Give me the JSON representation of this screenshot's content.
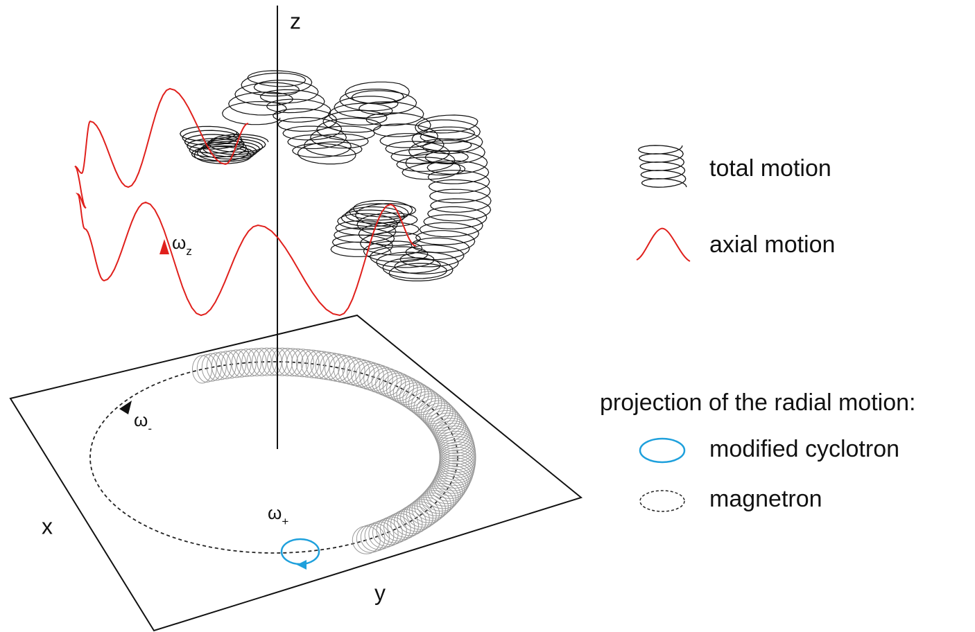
{
  "axes": {
    "z": "z",
    "x": "x",
    "y": "y"
  },
  "frequencies": {
    "axial": {
      "symbol": "ω",
      "subscript": "z"
    },
    "magnetron": {
      "symbol": "ω",
      "subscript": "-"
    },
    "cyclotron": {
      "symbol": "ω",
      "subscript": "+"
    }
  },
  "legend": {
    "total_motion": "total motion",
    "axial_motion": "axial motion",
    "radial_heading": "projection of the radial motion:",
    "modified_cyclotron": "modified cyclotron",
    "magnetron": "magnetron"
  }
}
